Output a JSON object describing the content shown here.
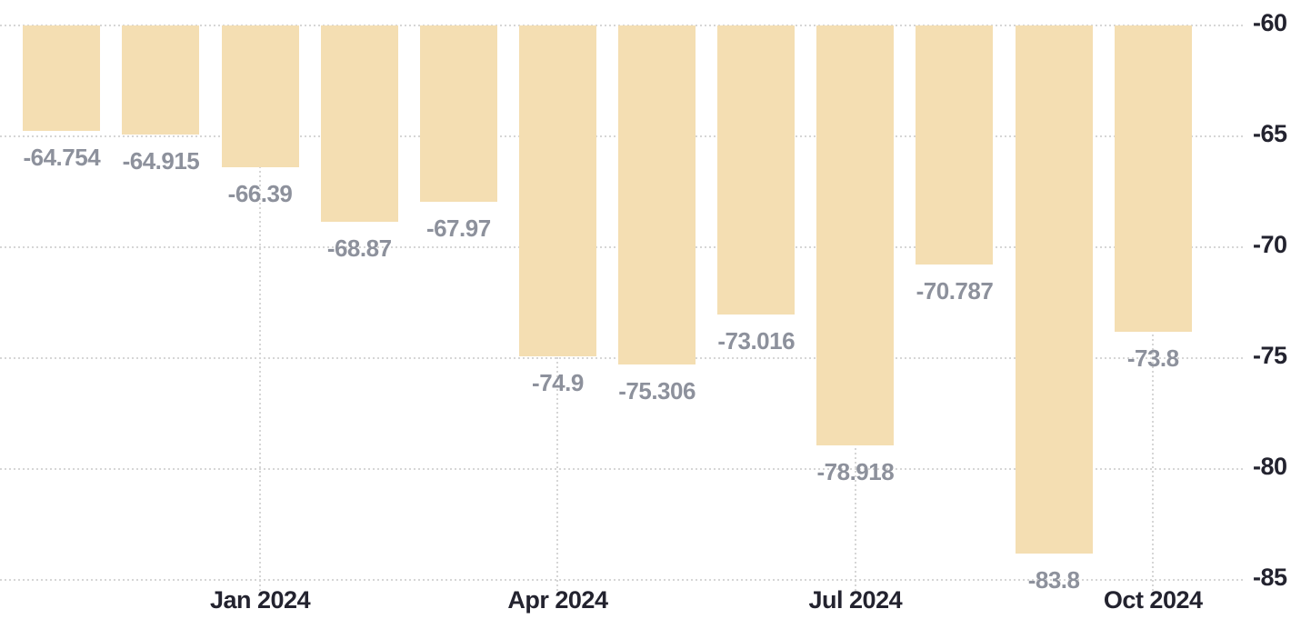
{
  "chart_data": {
    "type": "bar",
    "title": "",
    "xlabel": "",
    "ylabel": "",
    "values": [
      -64.754,
      -64.915,
      -66.39,
      -68.87,
      -67.97,
      -74.9,
      -75.306,
      -73.016,
      -78.918,
      -70.787,
      -83.8,
      -73.8
    ],
    "data_labels": [
      "-64.754",
      "-64.915",
      "-66.39",
      "-68.87",
      "-67.97",
      "-74.9",
      "-75.306",
      "-73.016",
      "-78.918",
      "-70.787",
      "-83.8",
      "-73.8"
    ],
    "bar_baseline_value": -60,
    "x_ticks": [
      {
        "label": "Jan 2024",
        "bar_index": 2
      },
      {
        "label": "Apr 2024",
        "bar_index": 5
      },
      {
        "label": "Jul 2024",
        "bar_index": 8
      },
      {
        "label": "Oct 2024",
        "bar_index": 11
      }
    ],
    "y_ticks": [
      {
        "label": "-60",
        "value": -60
      },
      {
        "label": "-65",
        "value": -65
      },
      {
        "label": "-70",
        "value": -70
      },
      {
        "label": "-75",
        "value": -75
      },
      {
        "label": "-80",
        "value": -80
      },
      {
        "label": "-85",
        "value": -85
      }
    ],
    "y_axis": {
      "top_value": -60,
      "bottom_value": -85,
      "label_side": "right"
    },
    "grid": {
      "style": "dotted",
      "horizontal": true,
      "vertical_at_x_ticks": true
    },
    "legend": null,
    "colors": {
      "background": "#ffffff",
      "bar_fill": "#f4deb2",
      "data_label": "#8d919c",
      "axis_label": "#23232f",
      "gridline": "#d6d6d6"
    }
  }
}
